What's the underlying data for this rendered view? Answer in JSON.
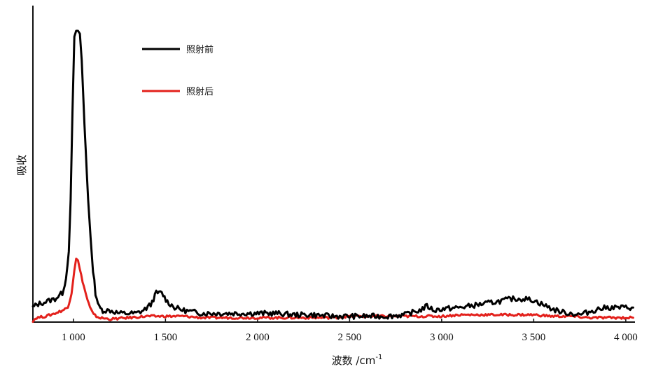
{
  "chart_data": {
    "type": "line",
    "title": "",
    "xlabel": "波数 /cm",
    "xlabel_superscript": "-1",
    "ylabel": "吸收",
    "xlim": [
      780,
      4050
    ],
    "ylim": [
      0,
      1
    ],
    "grid": false,
    "legend_position": "top-left",
    "x_ticks": [
      {
        "value": 1000,
        "label": "1 000"
      },
      {
        "value": 1500,
        "label": "1 500"
      },
      {
        "value": 2000,
        "label": "2 000"
      },
      {
        "value": 2500,
        "label": "2 500"
      },
      {
        "value": 3000,
        "label": "3 000"
      },
      {
        "value": 3500,
        "label": "3 500"
      },
      {
        "value": 4000,
        "label": "4 000"
      }
    ],
    "series": [
      {
        "name": "照射前",
        "color": "#000000",
        "x": [
          780,
          800,
          850,
          900,
          940,
          960,
          975,
          985,
          995,
          1005,
          1015,
          1025,
          1035,
          1045,
          1060,
          1080,
          1100,
          1120,
          1140,
          1160,
          1200,
          1250,
          1300,
          1340,
          1380,
          1420,
          1450,
          1480,
          1510,
          1550,
          1600,
          1650,
          1700,
          1800,
          1900,
          2000,
          2100,
          2200,
          2300,
          2400,
          2500,
          2600,
          2700,
          2800,
          2850,
          2880,
          2920,
          2960,
          3000,
          3100,
          3200,
          3300,
          3380,
          3450,
          3500,
          3550,
          3600,
          3650,
          3700,
          3750,
          3800,
          3850,
          3900,
          3950,
          4000,
          4040
        ],
        "y": [
          0.05,
          0.06,
          0.07,
          0.08,
          0.1,
          0.15,
          0.25,
          0.42,
          0.72,
          0.98,
          1.0,
          1.0,
          0.99,
          0.9,
          0.68,
          0.42,
          0.22,
          0.1,
          0.05,
          0.04,
          0.04,
          0.03,
          0.03,
          0.03,
          0.04,
          0.06,
          0.1,
          0.1,
          0.07,
          0.05,
          0.04,
          0.035,
          0.03,
          0.03,
          0.03,
          0.03,
          0.03,
          0.025,
          0.025,
          0.02,
          0.02,
          0.02,
          0.02,
          0.025,
          0.035,
          0.04,
          0.055,
          0.04,
          0.045,
          0.05,
          0.06,
          0.07,
          0.08,
          0.08,
          0.075,
          0.06,
          0.045,
          0.035,
          0.03,
          0.025,
          0.035,
          0.045,
          0.05,
          0.05,
          0.05,
          0.05
        ]
      },
      {
        "name": "照射后",
        "color": "#e3201b",
        "x": [
          780,
          800,
          850,
          900,
          940,
          970,
          990,
          1005,
          1015,
          1025,
          1035,
          1050,
          1070,
          1090,
          1110,
          1140,
          1200,
          1300,
          1400,
          1500,
          1600,
          1700,
          1800,
          1900,
          2000,
          2100,
          2200,
          2300,
          2400,
          2500,
          2600,
          2700,
          2800,
          2900,
          3000,
          3100,
          3200,
          3300,
          3400,
          3500,
          3600,
          3700,
          3800,
          3900,
          4000,
          4040
        ],
        "y": [
          0.005,
          0.015,
          0.02,
          0.03,
          0.04,
          0.05,
          0.1,
          0.18,
          0.22,
          0.21,
          0.18,
          0.14,
          0.09,
          0.05,
          0.025,
          0.015,
          0.01,
          0.015,
          0.02,
          0.02,
          0.02,
          0.015,
          0.015,
          0.015,
          0.015,
          0.015,
          0.015,
          0.015,
          0.015,
          0.02,
          0.02,
          0.02,
          0.02,
          0.02,
          0.02,
          0.025,
          0.025,
          0.025,
          0.025,
          0.025,
          0.02,
          0.02,
          0.015,
          0.015,
          0.015,
          0.015
        ]
      }
    ]
  }
}
